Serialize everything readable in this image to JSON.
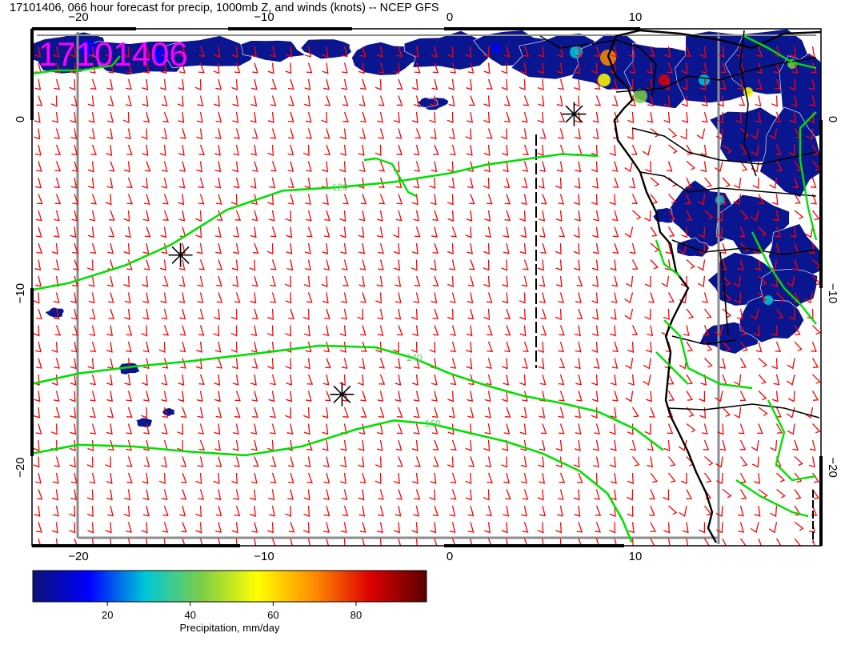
{
  "header": {
    "title": "17101406, 066 hour forecast for precip, 1000mb Z, and winds (knots) -- NCEP GFS",
    "stamp": "17101406"
  },
  "chart_data": {
    "type": "map",
    "projection": "lat-lon",
    "x_axis": {
      "min": -22.5,
      "max": 20,
      "ticks": [
        -20,
        -10,
        0,
        10
      ],
      "tick_labels": [
        "−20",
        "−10",
        "0",
        "10"
      ]
    },
    "y_axis": {
      "min": -24.5,
      "max": 5.2,
      "ticks": [
        0,
        -10,
        -20
      ],
      "tick_labels": [
        "0",
        "−10",
        "−20"
      ]
    },
    "grid": true,
    "grid_color": "#d4b000",
    "colors": {
      "wind_barbs": "#ff0000",
      "contours": "#00e000",
      "contour_labels": "#60d060",
      "coastline": "#000000",
      "stamp": "#ff00ff",
      "markers": "#000000"
    },
    "layers": [
      "precipitation (shaded)",
      "1000mb geopotential height (contours)",
      "winds (knots, barbs)"
    ],
    "contour_levels": [
      {
        "label": "120",
        "points": [
          [
            -22.5,
            -9.8
          ],
          [
            -20.5,
            -9.4
          ],
          [
            -17.5,
            -8.4
          ],
          [
            -15,
            -7.2
          ],
          [
            -12,
            -5.2
          ],
          [
            -9,
            -4.1
          ],
          [
            -6,
            -3.9
          ],
          [
            -3,
            -3.6
          ],
          [
            0,
            -3.1
          ],
          [
            2,
            -2.6
          ],
          [
            4,
            -2.3
          ],
          [
            6,
            -2
          ],
          [
            8,
            -2.1
          ]
        ]
      },
      {
        "label": "140",
        "points": [
          [
            -22.5,
            -15.2
          ],
          [
            -20,
            -14.6
          ],
          [
            -17,
            -14.2
          ],
          [
            -14,
            -13.9
          ],
          [
            -10,
            -13.4
          ],
          [
            -7,
            -13
          ],
          [
            -4,
            -13.1
          ],
          [
            -2,
            -13.7
          ],
          [
            0,
            -14.6
          ],
          [
            2,
            -15.3
          ],
          [
            4,
            -15.9
          ],
          [
            6,
            -16.3
          ],
          [
            8,
            -16.8
          ],
          [
            10,
            -17.8
          ],
          [
            11.5,
            -19
          ]
        ]
      },
      {
        "label": "160",
        "points": [
          [
            -22.5,
            -19.2
          ],
          [
            -20,
            -18.7
          ],
          [
            -17,
            -18.8
          ],
          [
            -14,
            -19.1
          ],
          [
            -11,
            -19.3
          ],
          [
            -8,
            -18.8
          ],
          [
            -5,
            -17.8
          ],
          [
            -3,
            -17.3
          ],
          [
            -1,
            -17.5
          ],
          [
            1,
            -18
          ],
          [
            3,
            -18.5
          ],
          [
            5,
            -19.2
          ],
          [
            7,
            -20.2
          ],
          [
            8.5,
            -21.5
          ],
          [
            9.3,
            -23
          ],
          [
            9.8,
            -24.3
          ]
        ]
      }
    ],
    "centers": [
      {
        "lon": -14.5,
        "lat": -7.8
      },
      {
        "lon": -5.8,
        "lat": -15.8
      },
      {
        "lon": 6.7,
        "lat": 0.3
      }
    ],
    "colorbar": {
      "label": "Precipitation, mm/day",
      "range": [
        2,
        97
      ],
      "ticks": [
        20,
        40,
        60,
        80
      ],
      "colormap": [
        "#0a1278",
        "#0000ff",
        "#00c8d8",
        "#7ccd46",
        "#ffff00",
        "#ff8c00",
        "#dd0000",
        "#5a0000"
      ]
    }
  }
}
